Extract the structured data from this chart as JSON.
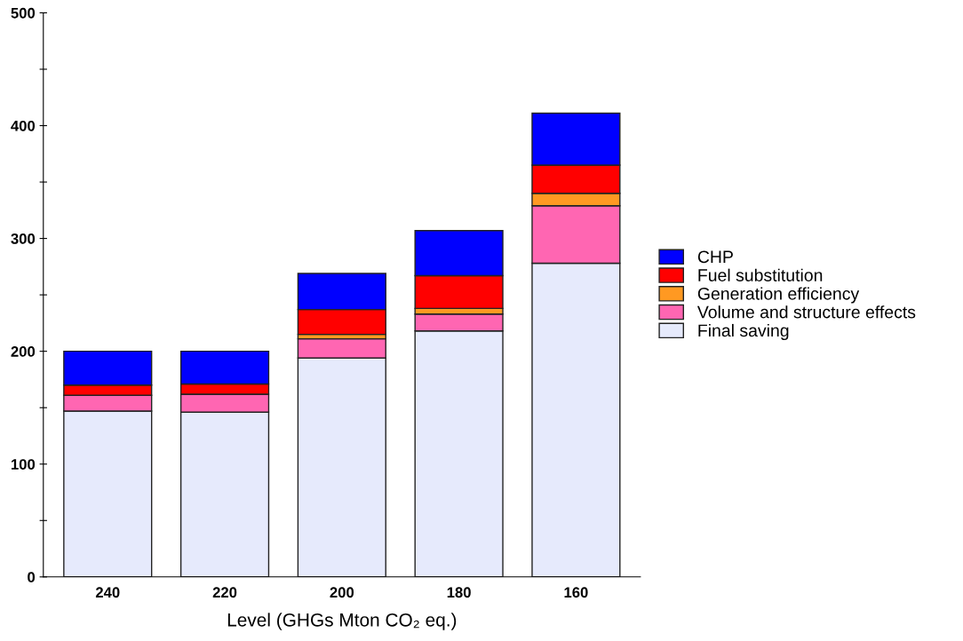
{
  "chart_data": {
    "type": "bar",
    "stacked": true,
    "xlabel": "Level (GHGs Mton CO₂ eq.)",
    "categories": [
      "240",
      "220",
      "200",
      "180",
      "160"
    ],
    "series": [
      {
        "name": "Final saving",
        "color": "#e6eafc",
        "values": [
          147,
          146,
          194,
          218,
          278
        ]
      },
      {
        "name": "Volume and structure effects",
        "color": "#ff66b2",
        "values": [
          14,
          16,
          17,
          15,
          51
        ]
      },
      {
        "name": "Generation efficiency",
        "color": "#ff9922",
        "values": [
          0,
          0,
          4,
          5,
          11
        ]
      },
      {
        "name": "Fuel substitution",
        "color": "#ff0000",
        "values": [
          9,
          9,
          22,
          29,
          25
        ]
      },
      {
        "name": "CHP",
        "color": "#0000ff",
        "values": [
          30,
          29,
          32,
          40,
          46
        ]
      }
    ],
    "ylim": [
      0,
      500
    ],
    "yticks": [
      0,
      {
        "value": 50,
        "label": null
      },
      100,
      {
        "value": 150,
        "label": null
      },
      200,
      {
        "value": 250,
        "label": null
      },
      300,
      {
        "value": 350,
        "label": null
      },
      400,
      {
        "value": 450,
        "label": null
      },
      500
    ],
    "grid": false,
    "legend": "right"
  }
}
